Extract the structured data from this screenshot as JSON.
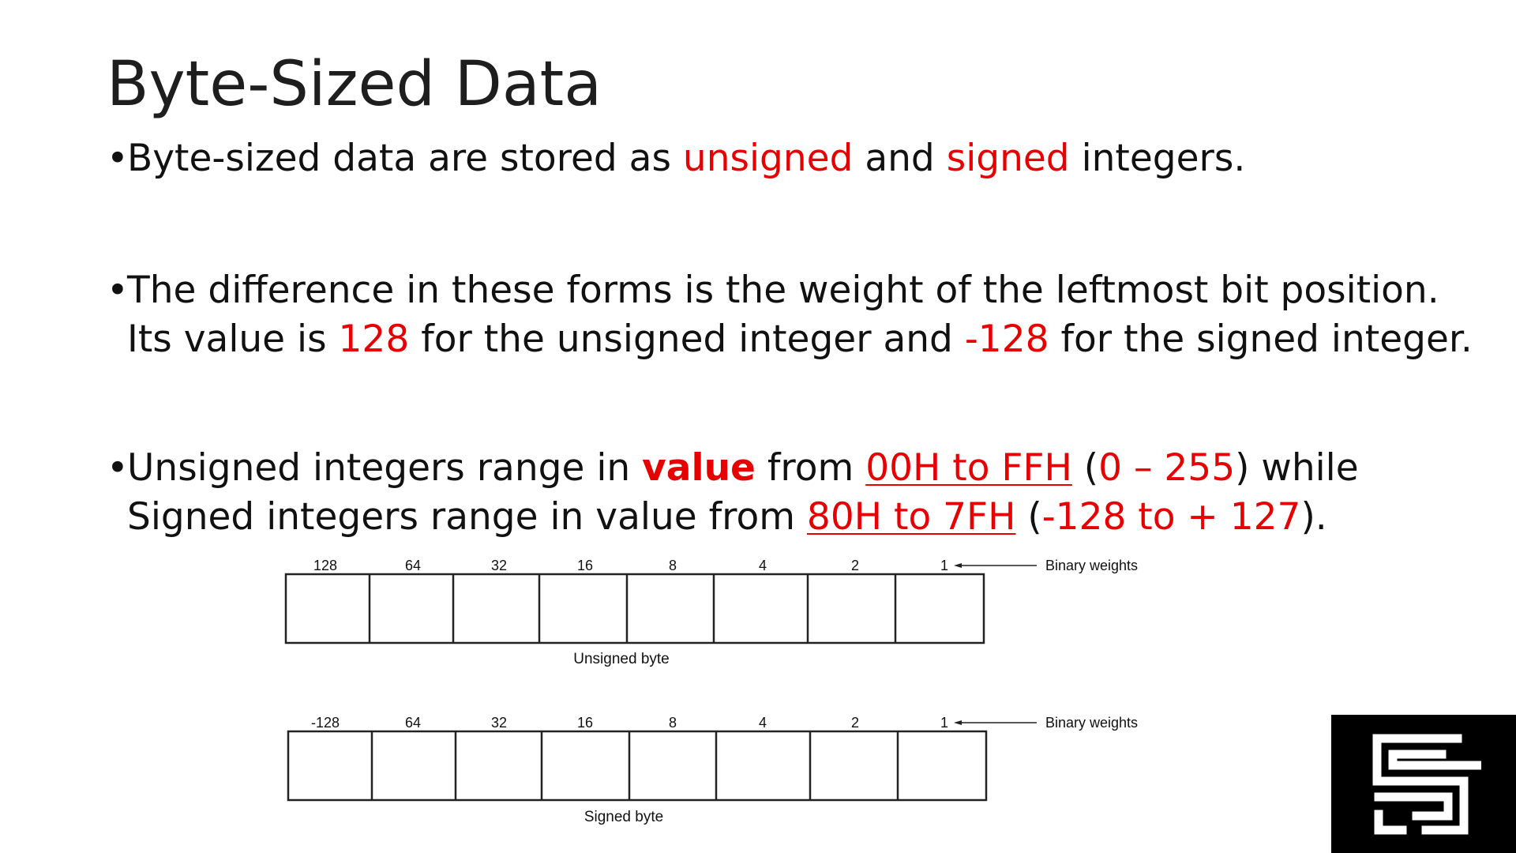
{
  "slide": {
    "title": "Byte-Sized Data"
  },
  "bullets": {
    "b1": {
      "t1": "Byte-sized data are stored as ",
      "t2": "unsigned",
      "t3": " and ",
      "t4": "signed",
      "t5": " integers."
    },
    "b2": {
      "line1": "The difference in these forms is the weight of the leftmost bit position.",
      "l2a": "Its value is ",
      "l2b": "128",
      "l2c": " for the unsigned integer and ",
      "l2d": "-128",
      "l2e": " for the signed integer."
    },
    "b3": {
      "t1": "Unsigned integers range in ",
      "t2": "value",
      "t3": " from ",
      "t4": "00H to FFH",
      "t5": " (",
      "t6": "0 – 255",
      "t7": ") while",
      "l2a": "Signed integers range in value from ",
      "l2b": "80H to 7FH",
      "l2c": " (",
      "l2d": "-128 to + 127",
      "l2e": ")."
    }
  },
  "diagrams": {
    "unsigned": {
      "weights": [
        "128",
        "64",
        "32",
        "16",
        "8",
        "4",
        "2",
        "1"
      ],
      "pointer_label": "Binary weights",
      "caption": "Unsigned byte"
    },
    "signed": {
      "weights": [
        "-128",
        "64",
        "32",
        "16",
        "8",
        "4",
        "2",
        "1"
      ],
      "pointer_label": "Binary weights",
      "caption": "Signed byte"
    }
  },
  "colors": {
    "accent_red": "#e60000",
    "text": "#111111",
    "logo_bg": "#000000"
  },
  "icons": {
    "logo": "maze-logo-icon"
  }
}
